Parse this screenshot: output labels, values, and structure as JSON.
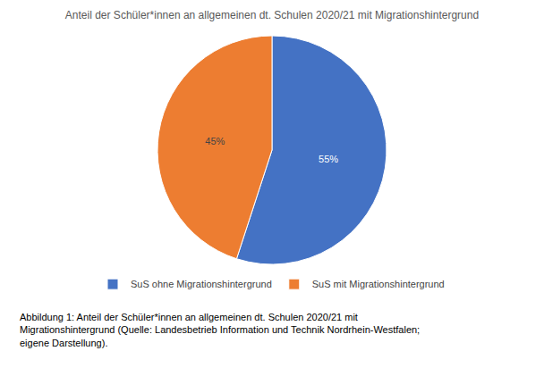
{
  "chart_data": {
    "type": "pie",
    "title": "Anteil der Schüler*innen an allgemeinen dt. Schulen 2020/21 mit Migrationshintergrund",
    "categories": [
      "SuS ohne Migrationshintergrund",
      "SuS mit Migrationshintergrund"
    ],
    "values": [
      55,
      45
    ],
    "value_labels": [
      "55%",
      "45%"
    ],
    "data_labels": true,
    "colors": [
      "#4472C4",
      "#ED7D31"
    ],
    "legend": "bottom",
    "annotations": [
      "Abbildung 1: Anteil der Schüler*innen an allgemeinen dt. Schulen 2020/21 mit",
      "Migrationshintergrund (Quelle: Landesbetrieb Information und Technik Nordrhein-Westfalen;",
      "eigene Darstellung)."
    ]
  }
}
